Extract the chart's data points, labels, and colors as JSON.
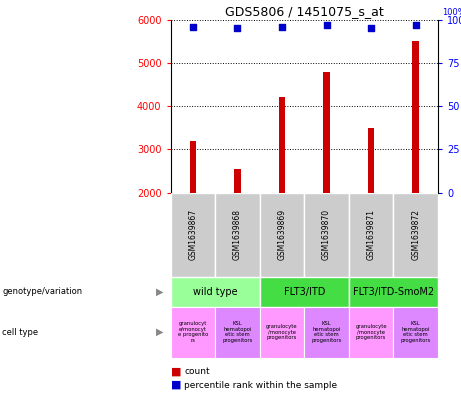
{
  "title": "GDS5806 / 1451075_s_at",
  "samples": [
    "GSM1639867",
    "GSM1639868",
    "GSM1639869",
    "GSM1639870",
    "GSM1639871",
    "GSM1639872"
  ],
  "counts": [
    3200,
    2550,
    4200,
    4800,
    3500,
    5500
  ],
  "percentile_ranks": [
    96,
    95,
    96,
    97,
    95,
    97
  ],
  "ylim_left": [
    2000,
    6000
  ],
  "ylim_right": [
    0,
    100
  ],
  "yticks_left": [
    2000,
    3000,
    4000,
    5000,
    6000
  ],
  "yticks_right": [
    0,
    25,
    50,
    75,
    100
  ],
  "bar_color": "#cc0000",
  "dot_color": "#0000cc",
  "bar_width": 0.15,
  "genotype_groups": [
    {
      "label": "wild type",
      "cols": [
        0,
        1
      ],
      "color": "#99ff99"
    },
    {
      "label": "FLT3/ITD",
      "cols": [
        2,
        3
      ],
      "color": "#44dd44"
    },
    {
      "label": "FLT3/ITD-SmoM2",
      "cols": [
        4,
        5
      ],
      "color": "#44dd44"
    }
  ],
  "cell_colors": [
    "#ff99ff",
    "#dd88ff",
    "#ff99ff",
    "#dd88ff",
    "#ff99ff",
    "#dd88ff"
  ],
  "cell_texts": [
    "granulocyt\ne/monocyt\ne progenito\nrs",
    "KSL\nhematopoi\netic stem\nprogenitors",
    "granulocyte\n/monocyte\nprogenitors",
    "KSL\nhematopoi\netic stem\nprogenitors",
    "granulocyte\n/monocyte\nprogenitors",
    "KSL\nhematopoi\netic stem\nprogenitors"
  ],
  "gsm_bg": "#cccccc",
  "plot_bg": "#ffffff"
}
